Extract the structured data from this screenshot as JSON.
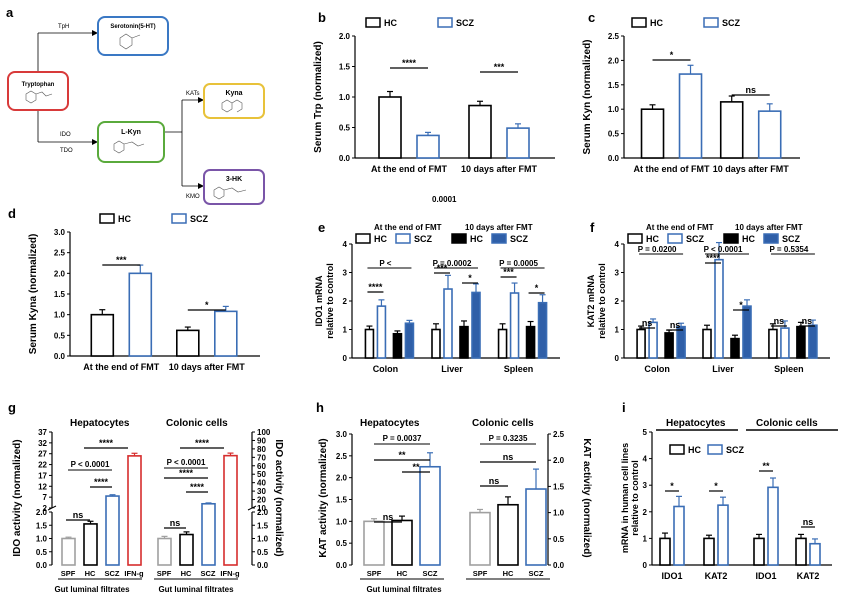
{
  "colors": {
    "hc": "#000000",
    "scz": "#3a6db5",
    "spf": "#a0a0a0",
    "ifn": "#d62d2d",
    "sczfill": "#2f5fa8"
  },
  "panel_a": {
    "label": "a",
    "nodes": {
      "trp": "Tryptophan",
      "ht": "Serotonin(5-HT)",
      "lkyn": "L-Kyn",
      "kyna": "Kyna",
      "hk": "3-HK"
    },
    "enzymes": {
      "tph": "TpH",
      "kats": "KATs",
      "ido": "IDO",
      "tdo": "TDO",
      "kmo": "KMO"
    },
    "colors": {
      "trp": "#d83a3a",
      "ht": "#3a78c4",
      "lkyn": "#5aaa3c",
      "kyna": "#e8c23a",
      "hk": "#7a55a8"
    }
  },
  "chart_data": [
    {
      "id": "b",
      "label": "b",
      "type": "bar",
      "ylabel": "Serum Trp (normalized)",
      "yticks": [
        "0.0",
        "0.5",
        "1.0",
        "1.5",
        "2.0"
      ],
      "ylim": [
        0,
        2.0
      ],
      "legend": [
        "HC",
        "SCZ"
      ],
      "categories": [
        "At the end of FMT",
        "10 days after FMT"
      ],
      "series": [
        {
          "name": "HC",
          "values": [
            1.0,
            0.86
          ],
          "errors": [
            0.09,
            0.07
          ]
        },
        {
          "name": "SCZ",
          "values": [
            0.37,
            0.49
          ],
          "errors": [
            0.05,
            0.07
          ]
        }
      ],
      "significance": [
        "****",
        "***"
      ]
    },
    {
      "id": "c",
      "label": "c",
      "type": "bar",
      "ylabel": "Serum Kyn (normalized)",
      "yticks": [
        "0.0",
        "0.5",
        "1.0",
        "1.5",
        "2.0",
        "2.5"
      ],
      "ylim": [
        0,
        2.5
      ],
      "legend": [
        "HC",
        "SCZ"
      ],
      "categories": [
        "At the end of FMT",
        "10 days after FMT"
      ],
      "series": [
        {
          "name": "HC",
          "values": [
            1.0,
            1.15
          ],
          "errors": [
            0.09,
            0.12
          ]
        },
        {
          "name": "SCZ",
          "values": [
            1.72,
            0.96
          ],
          "errors": [
            0.18,
            0.15
          ]
        }
      ],
      "significance": [
        "*",
        "ns"
      ]
    },
    {
      "id": "d",
      "label": "d",
      "type": "bar",
      "ylabel": "Serum Kyna (normalized)",
      "yticks": [
        "0.0",
        "0.5",
        "1.0",
        "1.5",
        "2.0",
        "2.5",
        "3.0"
      ],
      "ylim": [
        0,
        3.0
      ],
      "legend": [
        "HC",
        "SCZ"
      ],
      "categories": [
        "At the end of FMT",
        "10 days after FMT"
      ],
      "series": [
        {
          "name": "HC",
          "values": [
            1.0,
            0.62
          ],
          "errors": [
            0.12,
            0.08
          ]
        },
        {
          "name": "SCZ",
          "values": [
            2.0,
            1.08
          ],
          "errors": [
            0.2,
            0.12
          ]
        }
      ],
      "significance": [
        "***",
        "*"
      ]
    },
    {
      "id": "e",
      "label": "e",
      "type": "bar",
      "ylabel": "IDO1 mRNA relative to control",
      "yticks": [
        "0",
        "1",
        "2",
        "3",
        "4"
      ],
      "ylim": [
        0,
        4
      ],
      "header_left": "At the end of FMT",
      "header_right": "10 days after FMT",
      "header_mid": "0.0001",
      "legend": [
        "HC",
        "SCZ",
        "HC",
        "SCZ"
      ],
      "categories": [
        "Colon",
        "Liver",
        "Spleen"
      ],
      "series": [
        {
          "name": "HC",
          "values": [
            1.0,
            1.0,
            1.0
          ],
          "errors": [
            0.12,
            0.2,
            0.2
          ]
        },
        {
          "name": "SCZ",
          "values": [
            1.82,
            2.42,
            2.28
          ],
          "errors": [
            0.22,
            0.48,
            0.35
          ]
        },
        {
          "name": "HC",
          "values": [
            0.85,
            1.1,
            1.1
          ],
          "errors": [
            0.1,
            0.2,
            0.18
          ]
        },
        {
          "name": "SCZ",
          "values": [
            1.22,
            2.3,
            1.94
          ],
          "errors": [
            0.1,
            0.3,
            0.28
          ]
        }
      ],
      "pvalues": [
        "P <",
        "P = 0.0002",
        "P = 0.0005"
      ],
      "significance": [
        "****",
        "***",
        "*",
        "***",
        "*"
      ]
    },
    {
      "id": "f",
      "label": "f",
      "type": "bar",
      "ylabel": "KAT2 mRNA relative to control",
      "yticks": [
        "0",
        "1",
        "2",
        "3",
        "4"
      ],
      "ylim": [
        0,
        4
      ],
      "header_left": "At the end of FMT",
      "header_right": "10 days after FMT",
      "legend": [
        "HC",
        "SCZ",
        "HC",
        "SCZ"
      ],
      "categories": [
        "Colon",
        "Liver",
        "Spleen"
      ],
      "series": [
        {
          "name": "HC",
          "values": [
            1.0,
            1.0,
            1.0
          ],
          "errors": [
            0.12,
            0.15,
            0.2
          ]
        },
        {
          "name": "SCZ",
          "values": [
            1.25,
            3.45,
            1.05
          ],
          "errors": [
            0.12,
            0.6,
            0.25
          ]
        },
        {
          "name": "HC",
          "values": [
            0.88,
            0.68,
            1.1
          ],
          "errors": [
            0.1,
            0.12,
            0.15
          ]
        },
        {
          "name": "SCZ",
          "values": [
            1.1,
            1.82,
            1.15
          ],
          "errors": [
            0.12,
            0.22,
            0.18
          ]
        }
      ],
      "pvalues": [
        "P = 0.0200",
        "P < 0.0001",
        "P = 0.5354"
      ],
      "significance": [
        "ns",
        "ns",
        "****",
        "*",
        "ns",
        "ns"
      ]
    },
    {
      "id": "g",
      "label": "g",
      "type": "bar",
      "ylabel": "IDO activity (normalized)",
      "ylabel_right": "IDO activity (normalized)",
      "groups": [
        "Hepatocytes",
        "Colonic cells"
      ],
      "xtitle": "Gut luminal filtrates",
      "categories": [
        "SPF",
        "HC",
        "SCZ",
        "IFN-g"
      ],
      "yticks_top": [
        "37",
        "32",
        "27",
        "22",
        "17",
        "12",
        "7",
        "2"
      ],
      "yticks_bottom": [
        "2.0",
        "1.5",
        "1.0",
        "0.5",
        "0.0"
      ],
      "yticks_right_top": [
        "100",
        "90",
        "80",
        "70",
        "60",
        "50",
        "40",
        "30",
        "20",
        "10"
      ],
      "yticks_right_bottom": [
        "2.0",
        "1.5",
        "1.0",
        "0.5",
        "0.0"
      ],
      "series": [
        {
          "name": "Hepatocytes",
          "values": [
            1.0,
            1.55,
            7.5,
            26.0
          ],
          "errors": [
            0.05,
            0.1,
            0.6,
            1.2
          ]
        },
        {
          "name": "Colonic cells",
          "values": [
            1.0,
            1.15,
            15.0,
            72.0
          ],
          "errors": [
            0.08,
            0.1,
            1.0,
            3.0
          ]
        }
      ],
      "pvalues": [
        "P < 0.0001",
        "P < 0.0001"
      ],
      "significance": [
        "****",
        "****",
        "ns",
        "****",
        "****",
        "****",
        "ns"
      ]
    },
    {
      "id": "h",
      "label": "h",
      "type": "bar",
      "ylabel": "KAT activity (normalized)",
      "ylabel_right": "KAT activity (normalized)",
      "groups": [
        "Hepatocytes",
        "Colonic cells"
      ],
      "xtitle": "Gut luminal filtrates",
      "categories": [
        "SPF",
        "HC",
        "SCZ"
      ],
      "yticks": [
        "0.0",
        "0.5",
        "1.0",
        "1.5",
        "2.0",
        "2.5",
        "3.0"
      ],
      "ylim": [
        0,
        3.0
      ],
      "yticks_right": [
        "0.0",
        "0.5",
        "1.0",
        "1.5",
        "2.0",
        "2.5"
      ],
      "ylim_right": [
        0,
        2.5
      ],
      "series": [
        {
          "name": "Hepatocytes",
          "values": [
            1.0,
            1.02,
            2.25
          ],
          "errors": [
            0.06,
            0.1,
            0.32
          ]
        },
        {
          "name": "Colonic cells",
          "values": [
            1.0,
            1.15,
            1.45
          ],
          "errors": [
            0.06,
            0.15,
            0.38
          ]
        }
      ],
      "pvalues": [
        "P = 0.0037",
        "P = 0.3235"
      ],
      "significance": [
        "ns",
        "**",
        "**",
        "ns",
        "ns"
      ]
    },
    {
      "id": "i",
      "label": "i",
      "type": "bar",
      "ylabel": "mRNA in human cell lines relative to control",
      "groups": [
        "Hepatocytes",
        "Colonic cells"
      ],
      "legend": [
        "HC",
        "SCZ"
      ],
      "categories": [
        "IDO1",
        "KAT2",
        "IDO1",
        "KAT2"
      ],
      "yticks": [
        "0",
        "1",
        "2",
        "3",
        "4",
        "5"
      ],
      "ylim": [
        0,
        5
      ],
      "series": [
        {
          "name": "HC",
          "values": [
            1.0,
            1.0,
            1.0,
            1.0
          ],
          "errors": [
            0.2,
            0.12,
            0.15,
            0.15
          ]
        },
        {
          "name": "SCZ",
          "values": [
            2.2,
            2.25,
            2.92,
            0.8
          ],
          "errors": [
            0.38,
            0.3,
            0.35,
            0.18
          ]
        }
      ],
      "significance": [
        "*",
        "*",
        "**",
        "ns"
      ]
    }
  ]
}
